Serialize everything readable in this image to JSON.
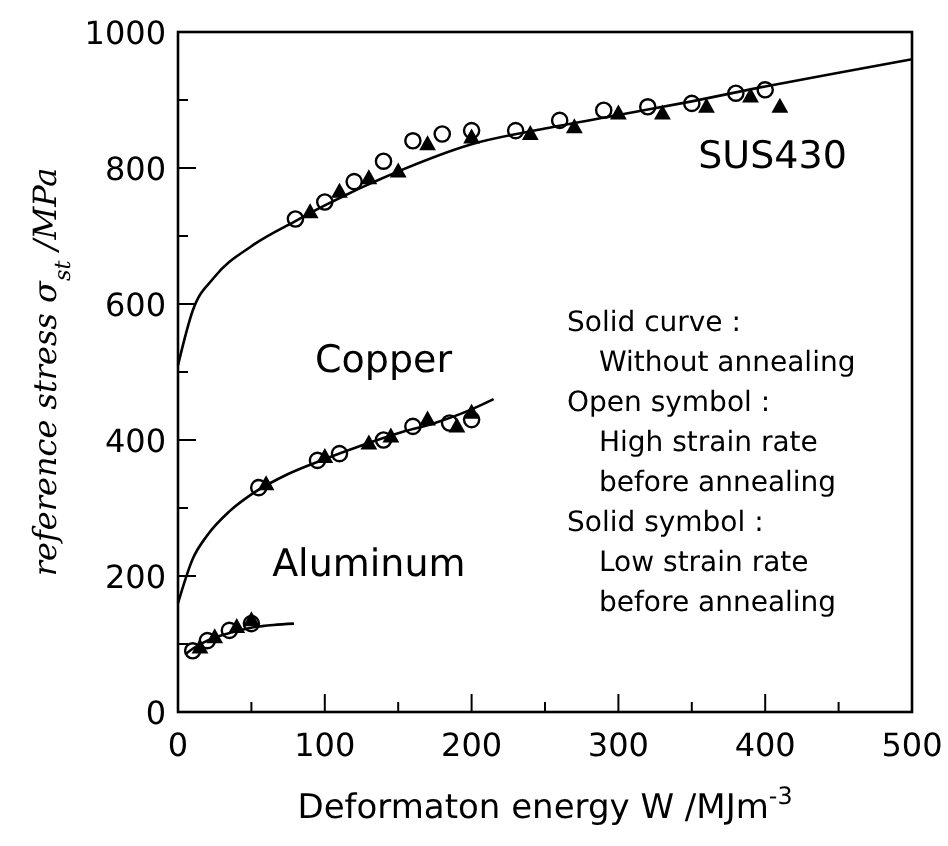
{
  "chart_data": {
    "type": "scatter",
    "xlabel": "Deformaton energy  W  /MJm$^{-3}$",
    "ylabel": "reference stress  σ$_{st}$ /MPa",
    "xlim": [
      0,
      500
    ],
    "ylim": [
      0,
      1000
    ],
    "xticks": [
      0,
      {
        "value": 50,
        "label": null
      },
      100,
      {
        "value": 150,
        "label": null
      },
      200,
      {
        "value": 250,
        "label": null
      },
      300,
      {
        "value": 350,
        "label": null
      },
      400,
      {
        "value": 450,
        "label": null
      },
      500
    ],
    "yticks": [
      0,
      {
        "value": 100,
        "label": null
      },
      200,
      {
        "value": 300,
        "label": null
      },
      400,
      {
        "value": 500,
        "label": null
      },
      600,
      {
        "value": 700,
        "label": null
      },
      800,
      {
        "value": 900,
        "label": null
      },
      1000
    ],
    "grid": false,
    "series": [
      {
        "type": "line",
        "color": "#000000",
        "marker": "none",
        "x": [
          0,
          10,
          25,
          50,
          80,
          100,
          150,
          200,
          250,
          300,
          350,
          400,
          450,
          500
        ],
        "values": [
          510,
          590,
          640,
          685,
          722,
          745,
          795,
          835,
          858,
          878,
          898,
          920,
          940,
          960
        ]
      },
      {
        "type": "line",
        "color": "#000000",
        "marker": "none",
        "x": [
          0,
          10,
          20,
          35,
          50,
          75,
          100,
          125,
          150,
          175,
          200,
          215
        ],
        "values": [
          160,
          225,
          260,
          295,
          320,
          350,
          372,
          392,
          410,
          425,
          445,
          460
        ]
      },
      {
        "type": "line",
        "color": "#000000",
        "marker": "none",
        "x": [
          5,
          10,
          20,
          35,
          50,
          65,
          79
        ],
        "values": [
          85,
          93,
          105,
          116,
          124,
          128,
          130
        ]
      },
      {
        "color": "#000000",
        "marker": "circle",
        "x": [
          80,
          100,
          120,
          140,
          160,
          180,
          200,
          230,
          260,
          290,
          320,
          350,
          380,
          400
        ],
        "values": [
          725,
          750,
          780,
          810,
          840,
          850,
          855,
          855,
          870,
          885,
          890,
          895,
          910,
          915
        ]
      },
      {
        "color": "#000000",
        "marker": "triangle",
        "x": [
          90,
          110,
          130,
          150,
          170,
          200,
          240,
          270,
          300,
          330,
          360,
          390,
          410
        ],
        "values": [
          735,
          765,
          785,
          795,
          835,
          845,
          850,
          860,
          880,
          880,
          890,
          905,
          890
        ]
      },
      {
        "color": "#000000",
        "marker": "circle",
        "x": [
          55,
          95,
          110,
          140,
          160,
          185,
          200
        ],
        "values": [
          330,
          370,
          380,
          400,
          420,
          425,
          430
        ]
      },
      {
        "color": "#000000",
        "marker": "triangle",
        "x": [
          60,
          100,
          130,
          145,
          170,
          190,
          200
        ],
        "values": [
          335,
          375,
          395,
          405,
          430,
          420,
          440
        ]
      },
      {
        "color": "#000000",
        "marker": "circle",
        "x": [
          10,
          20,
          35,
          50
        ],
        "values": [
          90,
          105,
          120,
          130
        ]
      },
      {
        "color": "#000000",
        "marker": "triangle",
        "x": [
          15,
          25,
          40,
          50
        ],
        "values": [
          95,
          110,
          125,
          135
        ]
      }
    ],
    "annotations": [
      "SUS430",
      "Copper",
      "Aluminum",
      "Solid curve :\nWithout annealing",
      "Open symbol :\nHigh strain rate\nbefore annealing",
      "Solid symbol :\nLow strain rate\nbefore annealing"
    ]
  }
}
